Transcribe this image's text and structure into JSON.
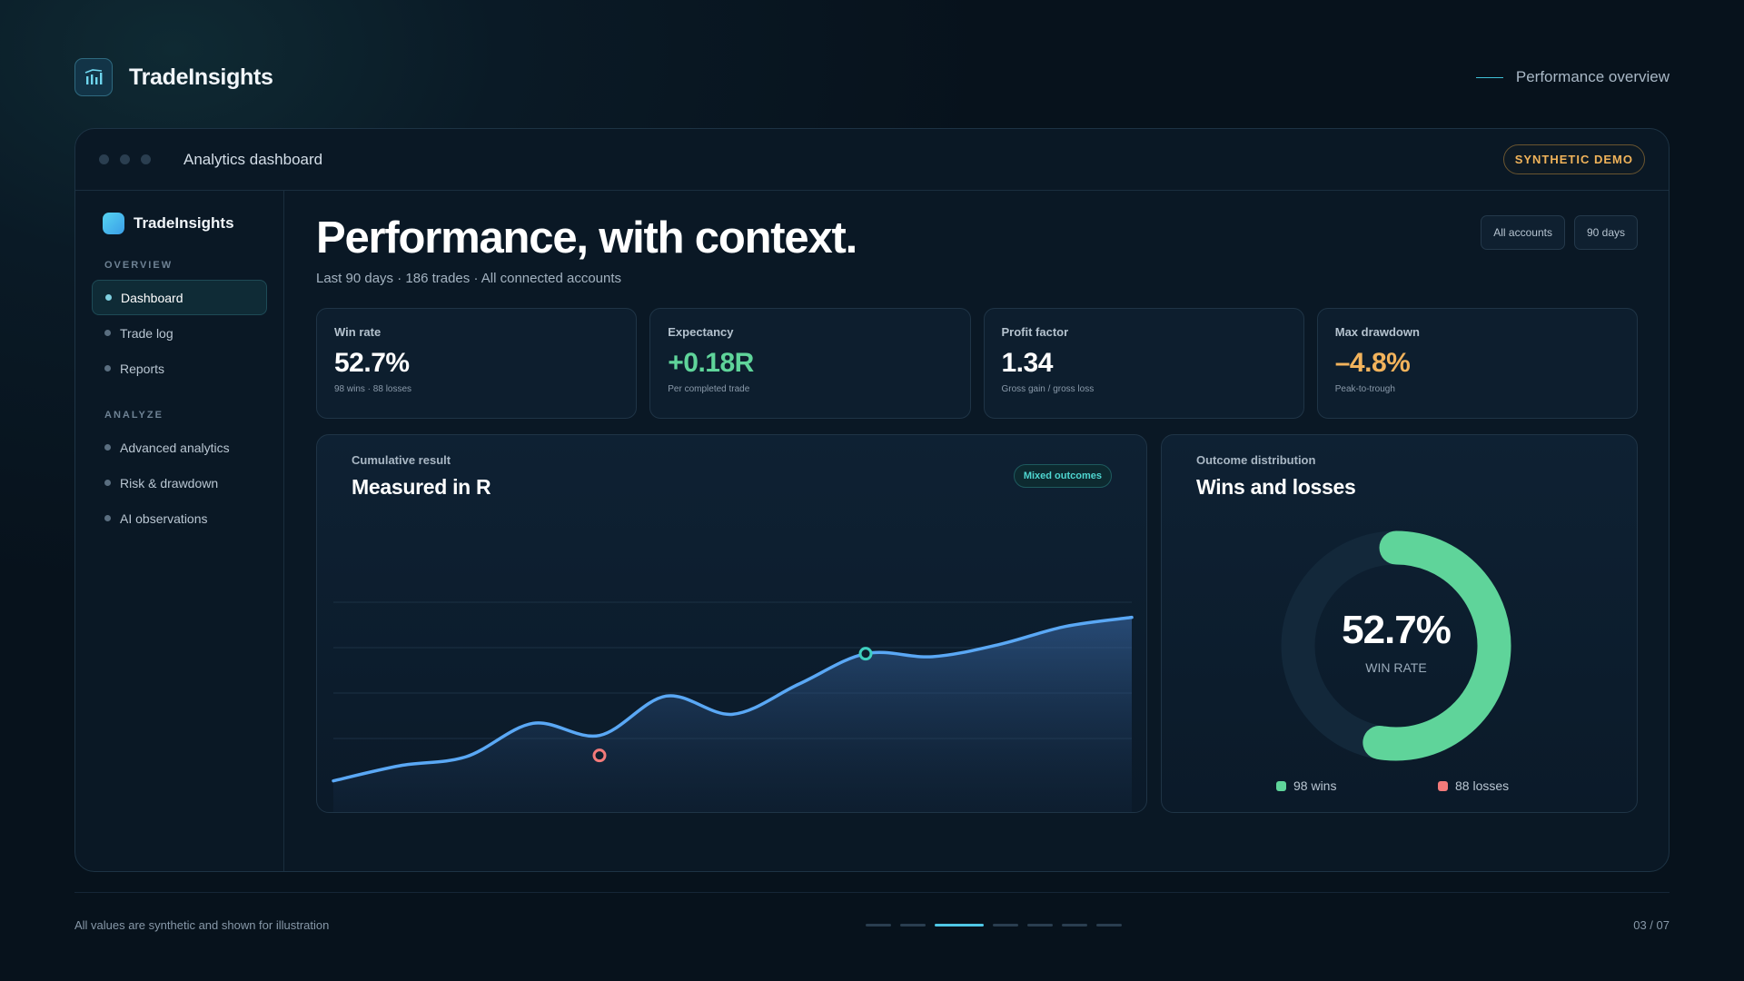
{
  "app": {
    "brand": "TradeInsights",
    "tagline": "Performance overview"
  },
  "window": {
    "title": "Analytics dashboard",
    "badge": "SYNTHETIC DEMO"
  },
  "sidebar": {
    "brand": "TradeInsights",
    "sections": [
      {
        "label": "OVERVIEW",
        "items": [
          "Dashboard",
          "Trade log",
          "Reports"
        ]
      },
      {
        "label": "ANALYZE",
        "items": [
          "Advanced analytics",
          "Risk & drawdown",
          "AI observations"
        ]
      }
    ],
    "active": "Dashboard"
  },
  "hero": {
    "title": "Performance, with context.",
    "subtitle": "Last 90 days · 186 trades · All connected accounts"
  },
  "filters": [
    "All accounts",
    "90 days"
  ],
  "kpis": [
    {
      "label": "Win rate",
      "value": "52.7%",
      "note": "98 wins · 88 losses",
      "tone": "neutral"
    },
    {
      "label": "Expectancy",
      "value": "+0.18R",
      "note": "Per completed trade",
      "tone": "green"
    },
    {
      "label": "Profit factor",
      "value": "1.34",
      "note": "Gross gain / gross loss",
      "tone": "neutral"
    },
    {
      "label": "Max drawdown",
      "value": "–4.8%",
      "note": "Peak-to-trough",
      "tone": "orange"
    }
  ],
  "cumulative": {
    "kicker": "Cumulative result",
    "title": "Measured in R",
    "badge": "Mixed outcomes"
  },
  "distribution": {
    "kicker": "Outcome distribution",
    "title": "Wins and losses",
    "center_value": "52.7%",
    "center_label": "WIN RATE",
    "wins_label": "98 wins",
    "losses_label": "88 losses"
  },
  "chart_data": [
    {
      "type": "area",
      "title": "Measured in R",
      "series": [
        {
          "values": [
            0.1,
            0.6,
            0.9,
            2.0,
            1.6,
            2.9,
            2.3,
            3.3,
            4.3,
            4.2,
            4.6,
            5.2,
            5.5
          ]
        }
      ],
      "markers": [
        {
          "index": 4,
          "kind": "loss"
        },
        {
          "index": 8,
          "kind": "win"
        }
      ],
      "grid": true
    },
    {
      "type": "pie",
      "title": "Wins and losses",
      "categories": [
        "wins",
        "losses"
      ],
      "values": [
        98,
        88
      ]
    }
  ],
  "colors": {
    "accent": "#4fc7e6",
    "win": "#5fd49a",
    "loss": "#f27a7a",
    "line": "#5aa8f5",
    "warning": "#f2b35c"
  },
  "footer": {
    "note": "All values are synthetic and shown for illustration",
    "page": "03 / 07",
    "pager_total": 7,
    "pager_active": 3
  }
}
